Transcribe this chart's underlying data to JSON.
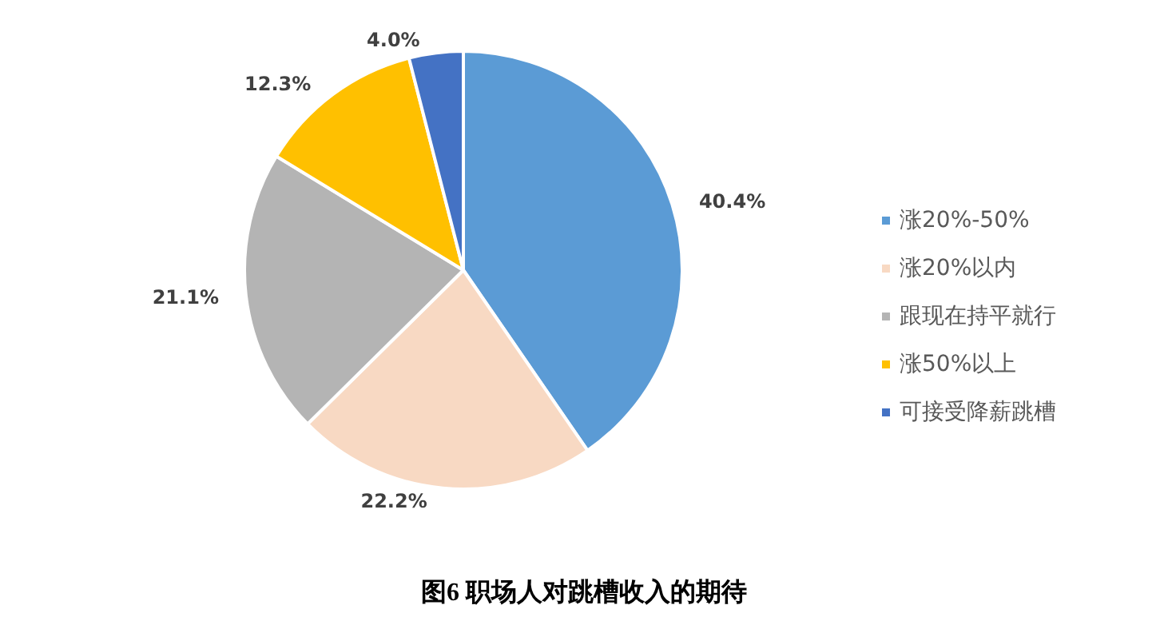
{
  "chart_data": {
    "type": "pie",
    "title": "图6 职场人对跳槽收入的期待",
    "categories": [
      "涨20%-50%",
      "涨20%以内",
      "跟现在持平就行",
      "涨50%以上",
      "可接受降薪跳槽"
    ],
    "values": [
      40.4,
      22.2,
      21.1,
      12.3,
      4.0
    ],
    "colors": [
      "#5b9bd5",
      "#f8d9c3",
      "#b4b4b4",
      "#ffc000",
      "#4472c4"
    ],
    "value_labels": [
      "40.4%",
      "22.2%",
      "21.1%",
      "12.3%",
      "4.0%"
    ],
    "legend": "right"
  }
}
